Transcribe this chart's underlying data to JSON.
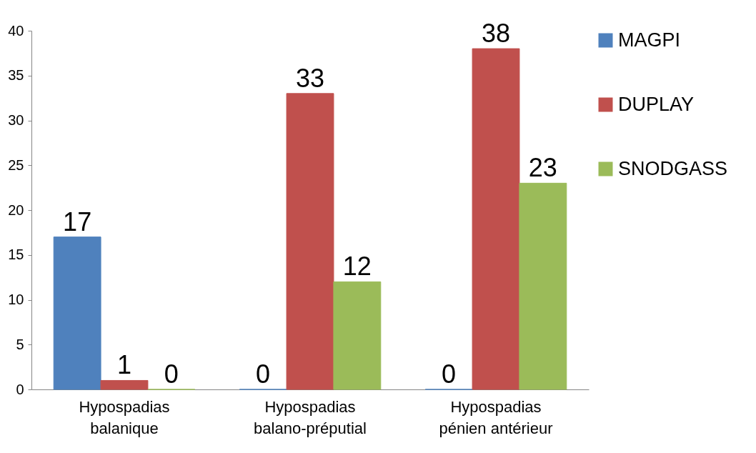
{
  "chart_data": {
    "type": "bar",
    "categories": [
      "Hypospadias balanique",
      "Hypospadias balano-préputial",
      "Hypospadias pénien antérieur"
    ],
    "series": [
      {
        "name": "MAGPI",
        "color": "#4f81bd",
        "values": [
          17,
          0,
          0
        ]
      },
      {
        "name": "DUPLAY",
        "color": "#c0504d",
        "values": [
          1,
          33,
          38
        ]
      },
      {
        "name": "SNODGASS",
        "color": "#9bbb59",
        "values": [
          0,
          12,
          23
        ]
      }
    ],
    "ylim": [
      0,
      40
    ],
    "yticks": [
      0,
      5,
      10,
      15,
      20,
      25,
      30,
      35,
      40
    ],
    "grid": false,
    "legend": "right",
    "data_labels": true
  }
}
